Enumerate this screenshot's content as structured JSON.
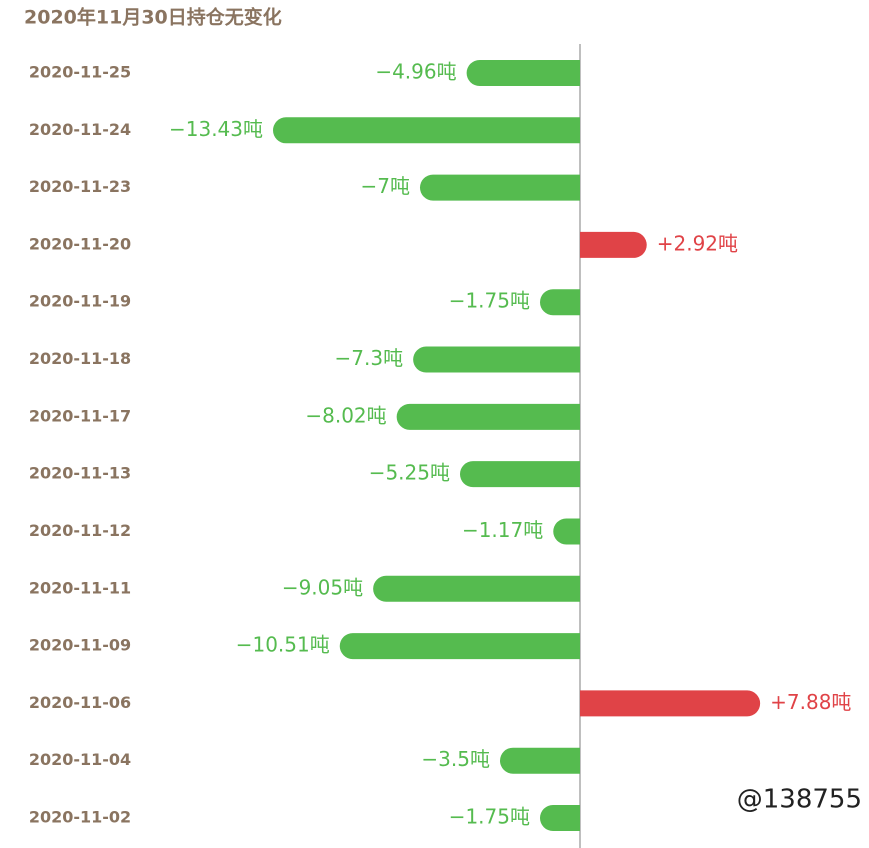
{
  "chart_data": {
    "type": "hbar-diverging",
    "title": "2020年11月30日持仓无变化",
    "categories": [
      "2020-11-25",
      "2020-11-24",
      "2020-11-23",
      "2020-11-20",
      "2020-11-19",
      "2020-11-18",
      "2020-11-17",
      "2020-11-13",
      "2020-11-12",
      "2020-11-11",
      "2020-11-09",
      "2020-11-06",
      "2020-11-04",
      "2020-11-02"
    ],
    "values": [
      -4.96,
      -13.43,
      -7,
      2.92,
      -1.75,
      -7.3,
      -8.02,
      -5.25,
      -1.17,
      -9.05,
      -10.51,
      7.88,
      -3.5,
      -1.75
    ],
    "value_labels": [
      "−4.96吨",
      "−13.43吨",
      "−7吨",
      "+2.92吨",
      "−1.75吨",
      "−7.3吨",
      "−8.02吨",
      "−5.25吨",
      "−1.17吨",
      "−9.05吨",
      "−10.51吨",
      "+7.88吨",
      "−3.5吨",
      "−1.75吨"
    ],
    "negative_color": "#55bb4f",
    "positive_color": "#e04347",
    "watermark": "@138755"
  }
}
